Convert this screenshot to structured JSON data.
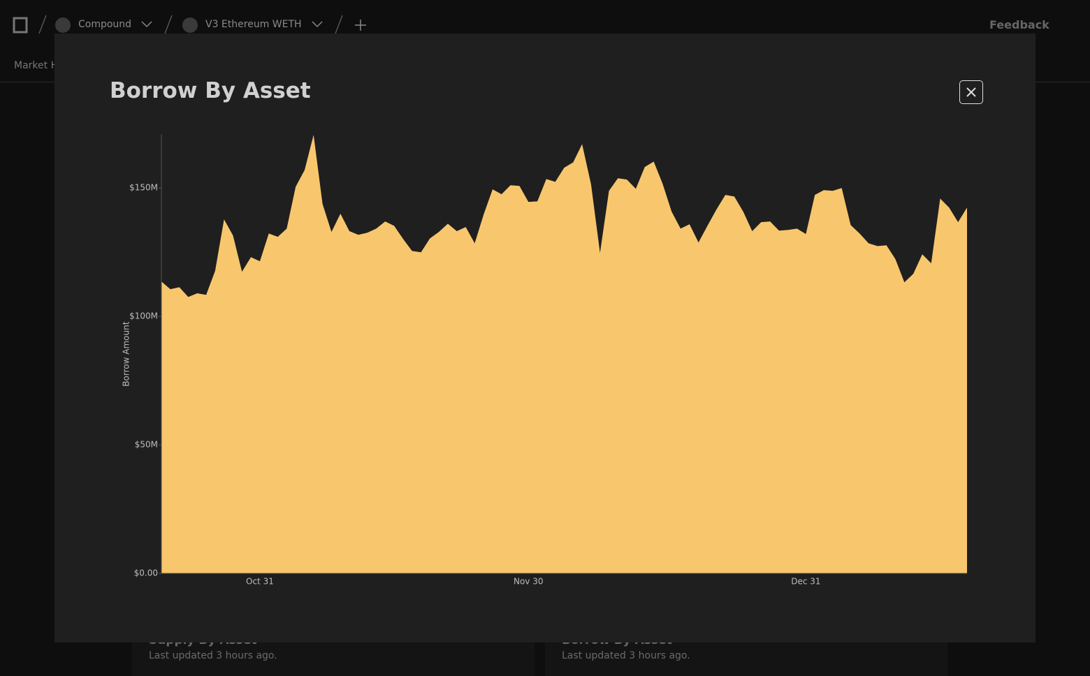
{
  "nav": {
    "project": "Compound",
    "market": "V3 Ethereum WETH",
    "feedback": "Feedback",
    "tab": "Market H"
  },
  "cards": [
    {
      "title": "Supply By Asset",
      "updated": "Last updated 3 hours ago."
    },
    {
      "title": "Borrow By Asset",
      "updated": "Last updated 3 hours ago."
    }
  ],
  "modal": {
    "title": "Borrow By Asset"
  },
  "chart_data": {
    "type": "area",
    "y_label": "Borrow Amount",
    "color": "#f8c76d",
    "categories": [
      null,
      null,
      null,
      null,
      null,
      null,
      null,
      null,
      null,
      null,
      null,
      "Oct 31",
      null,
      null,
      null,
      null,
      null,
      null,
      null,
      null,
      null,
      null,
      null,
      null,
      null,
      null,
      null,
      null,
      null,
      null,
      null,
      null,
      null,
      null,
      null,
      null,
      null,
      null,
      null,
      null,
      null,
      "Nov 30",
      null,
      null,
      null,
      null,
      null,
      null,
      null,
      null,
      null,
      null,
      null,
      null,
      null,
      null,
      null,
      null,
      null,
      null,
      null,
      null,
      null,
      null,
      null,
      null,
      null,
      null,
      null,
      null,
      null,
      null,
      "Dec 31",
      null,
      null,
      null,
      null,
      null,
      null,
      null,
      null,
      null,
      null,
      null,
      null,
      null,
      null,
      null,
      null,
      null,
      null
    ],
    "values": [
      113600000,
      110600000,
      111400000,
      107600000,
      109000000,
      108400000,
      117700000,
      137800000,
      131500000,
      117400000,
      123100000,
      121500000,
      132300000,
      131000000,
      134200000,
      150500000,
      157000000,
      170700000,
      143800000,
      132900000,
      140000000,
      133200000,
      131800000,
      132600000,
      134200000,
      137000000,
      135300000,
      130200000,
      125500000,
      125000000,
      130400000,
      132900000,
      136100000,
      133200000,
      134800000,
      128500000,
      139700000,
      149500000,
      147600000,
      151100000,
      150800000,
      144600000,
      144800000,
      153500000,
      152400000,
      157900000,
      160000000,
      167100000,
      151400000,
      124700000,
      148900000,
      153800000,
      153300000,
      149700000,
      158200000,
      160300000,
      151600000,
      140800000,
      134200000,
      135900000,
      128800000,
      135300000,
      141600000,
      147300000,
      146700000,
      140800000,
      133200000,
      136700000,
      137000000,
      133400000,
      133700000,
      134200000,
      132100000,
      147300000,
      149200000,
      148900000,
      150000000,
      135600000,
      132300000,
      128500000,
      127400000,
      127700000,
      122300000,
      113300000,
      116600000,
      124200000,
      120700000,
      145900000,
      142400000,
      136700000,
      142400000
    ],
    "ylim": [
      0,
      171000000
    ],
    "yticks": [
      {
        "value": 0,
        "label": "$0.00"
      },
      {
        "value": 50000000,
        "label": "$50M"
      },
      {
        "value": 100000000,
        "label": "$100M"
      },
      {
        "value": 150000000,
        "label": "$150M"
      }
    ]
  }
}
